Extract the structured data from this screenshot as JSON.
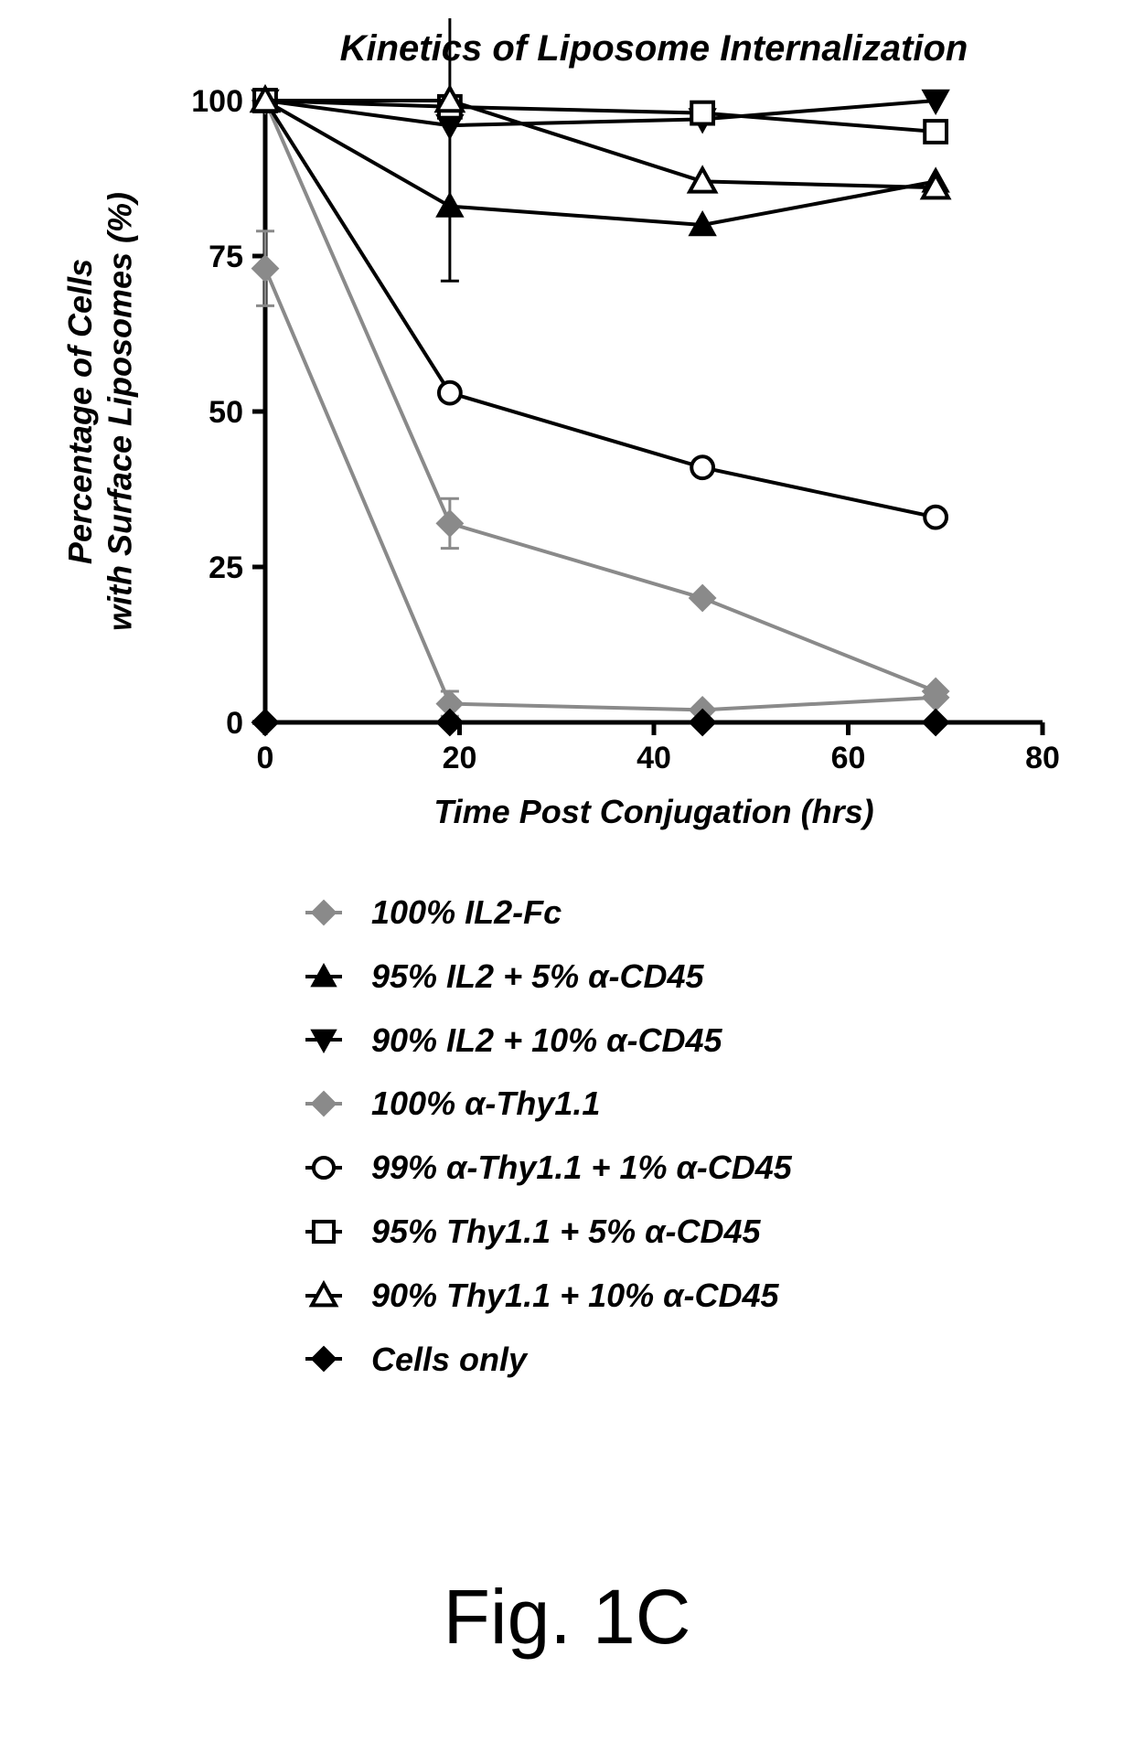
{
  "chart": {
    "type": "line",
    "title": "Kinetics of Liposome Internalization",
    "title_fontsize": 40,
    "title_fontweight": "700",
    "title_fontstyle": "italic",
    "xlabel": "Time Post Conjugation (hrs)",
    "ylabel_line1": "Percentage of Cells",
    "ylabel_line2": "with Surface Liposomes (%)",
    "label_fontsize": 36,
    "label_fontweight": "700",
    "label_fontstyle": "italic",
    "tick_fontsize": 34,
    "tick_fontweight": "700",
    "xlim": [
      0,
      80
    ],
    "ylim": [
      0,
      100
    ],
    "xticks": [
      0,
      20,
      40,
      60,
      80
    ],
    "yticks": [
      0,
      25,
      50,
      75,
      100
    ],
    "background_color": "#ffffff",
    "axis_color": "#000000",
    "axis_width": 5,
    "line_width": 4,
    "marker_size": 14,
    "error_bar_width": 3,
    "series": [
      {
        "name": "100% IL2-Fc",
        "marker": "diamond-filled",
        "color": "#8a8a8a",
        "x": [
          0,
          19,
          45,
          69
        ],
        "y": [
          73,
          3,
          2,
          4
        ],
        "yerr": [
          6,
          2,
          0,
          0
        ]
      },
      {
        "name": "95% IL2 + 5% α-CD45",
        "marker": "triangle-filled",
        "color": "#000000",
        "x": [
          0,
          19,
          45,
          69
        ],
        "y": [
          100,
          83,
          80,
          87
        ]
      },
      {
        "name": "90% IL2 + 10% α-CD45",
        "marker": "triangle-down-filled",
        "color": "#000000",
        "x": [
          0,
          19,
          45,
          69
        ],
        "y": [
          100,
          96,
          97,
          100
        ]
      },
      {
        "name": "100% α-Thy1.1",
        "marker": "diamond-filled",
        "color": "#8a8a8a",
        "x": [
          0,
          19,
          45,
          69
        ],
        "y": [
          100,
          32,
          20,
          5
        ],
        "yerr": [
          0,
          4,
          0,
          0
        ]
      },
      {
        "name": "99% α-Thy1.1 + 1% α-CD45",
        "marker": "circle-open",
        "color": "#000000",
        "x": [
          0,
          19,
          45,
          69
        ],
        "y": [
          100,
          53,
          41,
          33
        ]
      },
      {
        "name": "95% Thy1.1 + 5% α-CD45",
        "marker": "square-open",
        "color": "#000000",
        "x": [
          0,
          19,
          45,
          69
        ],
        "y": [
          100,
          99,
          98,
          95
        ],
        "yerr": [
          0,
          28,
          0,
          0
        ]
      },
      {
        "name": "90% Thy1.1 + 10% α-CD45",
        "marker": "triangle-open",
        "color": "#000000",
        "x": [
          0,
          19,
          45,
          69
        ],
        "y": [
          100,
          100,
          87,
          86
        ]
      },
      {
        "name": "Cells only",
        "marker": "diamond-filled",
        "color": "#000000",
        "x": [
          0,
          19,
          45,
          69
        ],
        "y": [
          0,
          0,
          0,
          0
        ]
      }
    ]
  },
  "legend_items": [
    {
      "label": "100% IL2-Fc",
      "marker": "diamond-filled",
      "color": "#8a8a8a"
    },
    {
      "label": "95% IL2 + 5% α-CD45",
      "marker": "triangle-filled",
      "color": "#000000"
    },
    {
      "label": "90% IL2 + 10% α-CD45",
      "marker": "triangle-down-filled",
      "color": "#000000"
    },
    {
      "label": "100% α-Thy1.1",
      "marker": "diamond-filled",
      "color": "#8a8a8a"
    },
    {
      "label": "99% α-Thy1.1 + 1% α-CD45",
      "marker": "circle-open",
      "color": "#000000"
    },
    {
      "label": "95% Thy1.1 + 5% α-CD45",
      "marker": "square-open",
      "color": "#000000"
    },
    {
      "label": "90% Thy1.1 + 10% α-CD45",
      "marker": "triangle-open",
      "color": "#000000"
    },
    {
      "label": "Cells only",
      "marker": "diamond-filled",
      "color": "#000000"
    }
  ],
  "figure_label": "Fig. 1C",
  "figure_label_fontsize": 84
}
